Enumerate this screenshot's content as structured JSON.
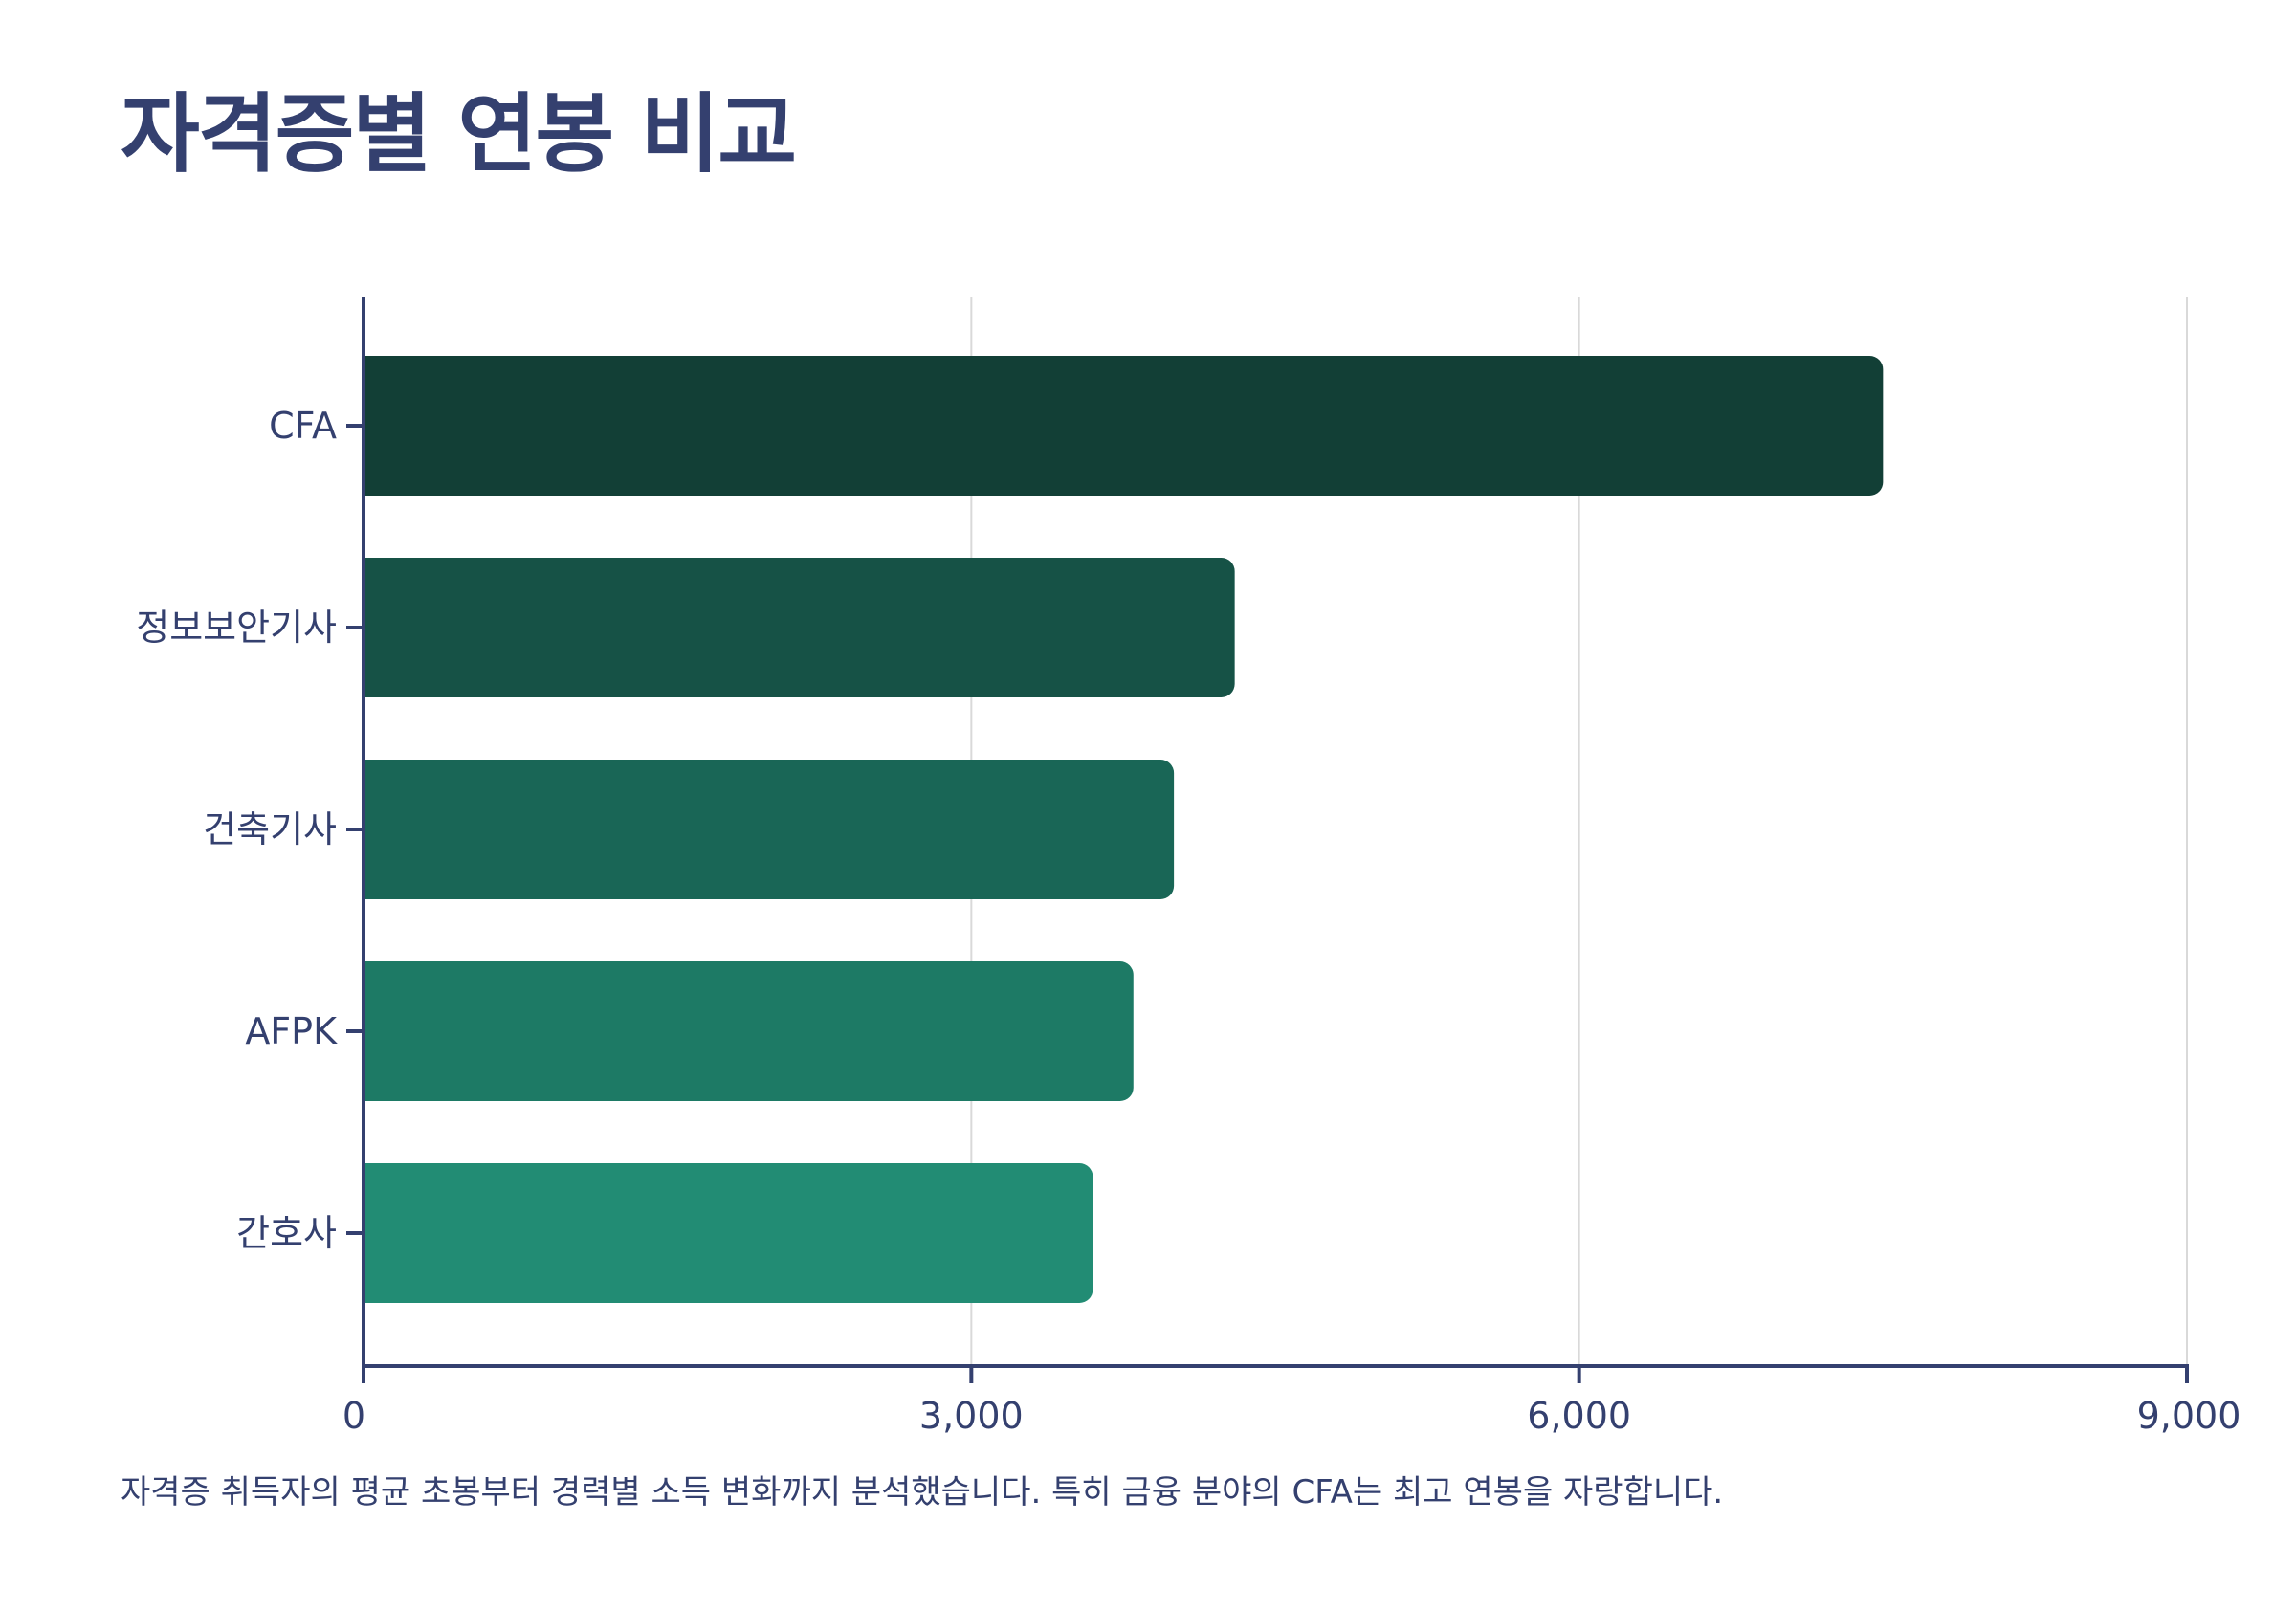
{
  "title": "자격증별 연봉 비교",
  "caption": "자격증 취득자의 평균 초봉부터 경력별 소득 변화까지 분석했습니다. 특히 금융 분야의 CFA는 최고 연봉을 자랑합니다.",
  "colors": {
    "title": "#34406f",
    "axis": "#34406f",
    "grid": "#d9d9d9",
    "bars": [
      "#123f36",
      "#165246",
      "#196656",
      "#1d7a65",
      "#228c74"
    ]
  },
  "chart_data": {
    "type": "bar",
    "orientation": "horizontal",
    "categories": [
      "CFA",
      "정보보안기사",
      "건축기사",
      "AFPK",
      "간호사"
    ],
    "values": [
      7500,
      4300,
      4000,
      3800,
      3600
    ],
    "xlim": [
      0,
      9000
    ],
    "xticks": [
      0,
      3000,
      6000,
      9000
    ],
    "xtick_labels": [
      "0",
      "3,000",
      "6,000",
      "9,000"
    ],
    "grid": true,
    "legend": "none",
    "title": "",
    "xlabel": "",
    "ylabel": ""
  }
}
